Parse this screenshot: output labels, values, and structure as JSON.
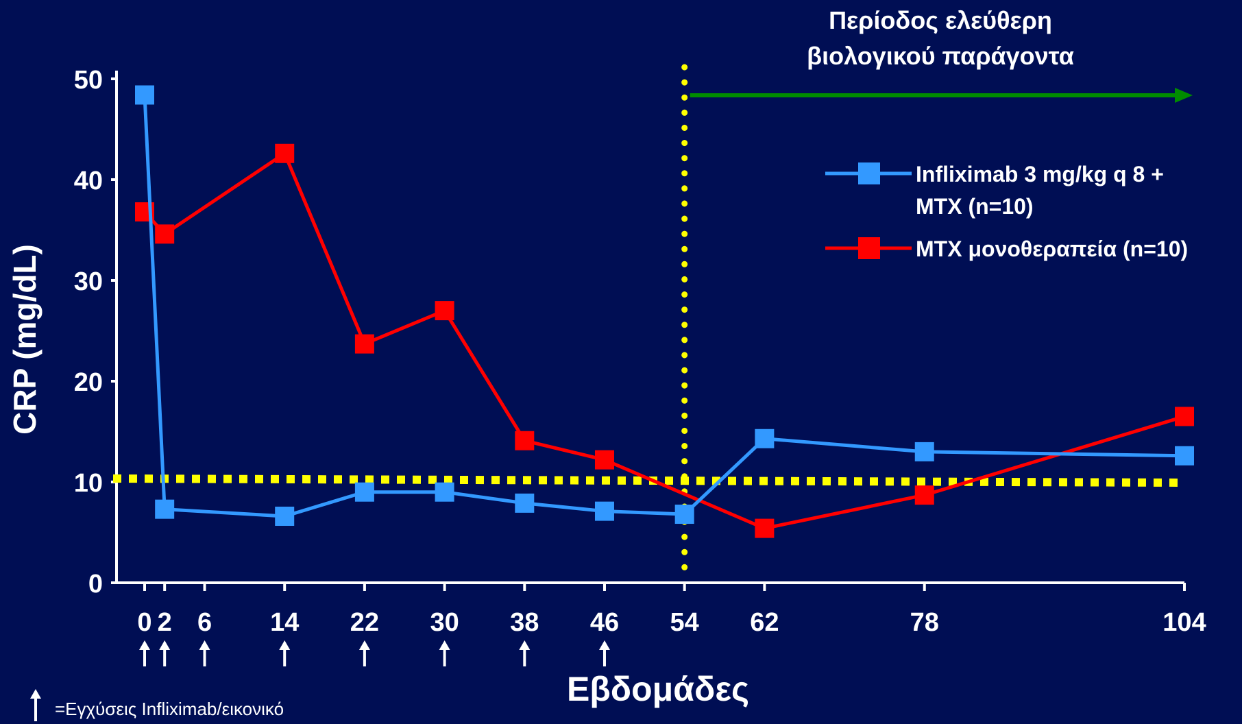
{
  "chart_data": {
    "type": "line",
    "ylabel": "CRP (mg/dL)",
    "xlabel": "Εβδομάδες",
    "ylim": [
      0,
      50
    ],
    "yticks": [
      0,
      10,
      20,
      30,
      40,
      50
    ],
    "xticks": [
      0,
      2,
      6,
      14,
      22,
      30,
      38,
      46,
      54,
      62,
      78,
      104
    ],
    "x_range": [
      0,
      104
    ],
    "series": [
      {
        "name": "Infliximab 3 mg/kg q 8 + MTX (n=10)",
        "color": "#3399ff",
        "points": [
          [
            0,
            48.4
          ],
          [
            2,
            7.3
          ],
          [
            14,
            6.6
          ],
          [
            22,
            9.0
          ],
          [
            30,
            9.0
          ],
          [
            38,
            7.9
          ],
          [
            46,
            7.1
          ],
          [
            54,
            6.8
          ],
          [
            62,
            14.3
          ],
          [
            78,
            13.0
          ],
          [
            104,
            12.6
          ]
        ]
      },
      {
        "name": "MTX μονοθεραπεία (n=10)",
        "color": "#ff0000",
        "points": [
          [
            0,
            36.8
          ],
          [
            2,
            34.6
          ],
          [
            14,
            42.6
          ],
          [
            22,
            23.7
          ],
          [
            30,
            27.0
          ],
          [
            38,
            14.1
          ],
          [
            46,
            12.2
          ],
          [
            62,
            5.4
          ],
          [
            78,
            8.7
          ],
          [
            104,
            16.5
          ]
        ]
      }
    ],
    "threshold_line": {
      "y": 10,
      "color": "#ffff00",
      "style": "dotted"
    },
    "biologic_free_line": {
      "x": 54,
      "color": "#ffff00",
      "style": "dotted"
    },
    "biologic_free_period": {
      "label_line1": "Περίοδος ελεύθερη",
      "label_line2": "βιολογικού παράγοντα",
      "x_from": 54,
      "x_to": 104,
      "arrow_color": "#008c00"
    },
    "infusion_weeks": [
      0,
      2,
      6,
      14,
      22,
      30,
      38,
      46
    ],
    "infusion_legend": "=Εγχύσεις  Infliximab/εικονικό",
    "legend": {
      "placement": "right",
      "items": [
        {
          "line1": "Infliximab 3 mg/kg q 8 +",
          "line2": "MTX (n=10)",
          "color": "#3399ff"
        },
        {
          "line1": "MTX μονοθεραπεία (n=10)",
          "line2": "",
          "color": "#ff0000"
        }
      ]
    }
  }
}
